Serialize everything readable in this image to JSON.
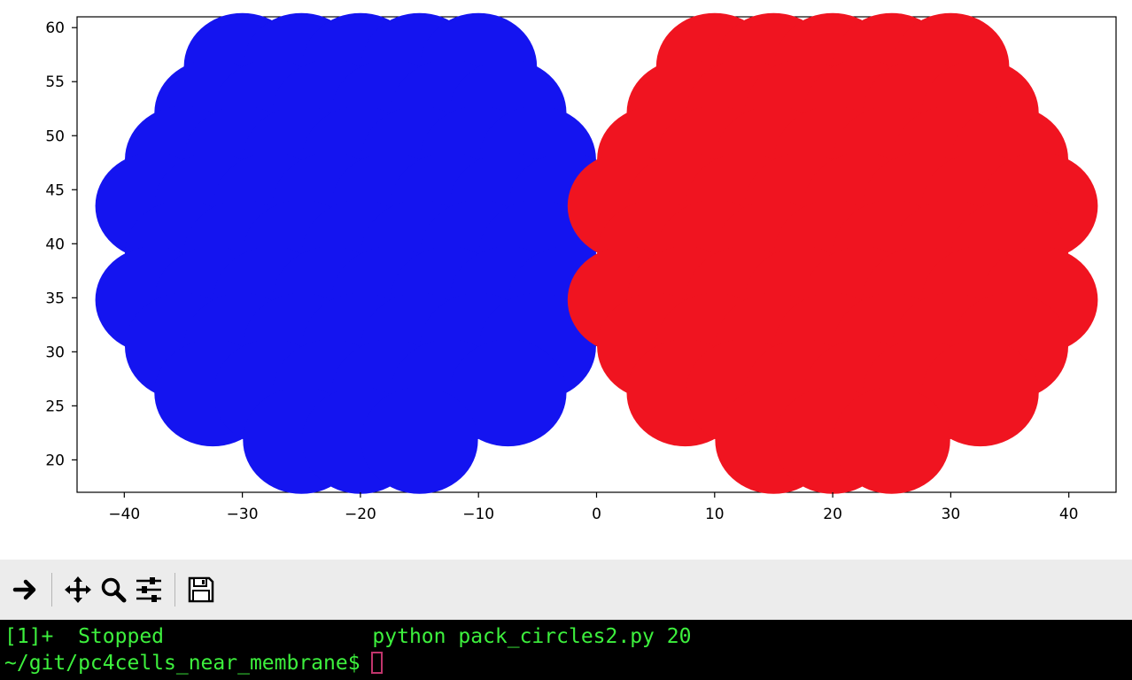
{
  "chart_data": {
    "type": "scatter",
    "title": "",
    "xlabel": "",
    "ylabel": "",
    "xlim": [
      -44,
      44
    ],
    "ylim": [
      17,
      61
    ],
    "xticks": [
      -40,
      -30,
      -20,
      -10,
      0,
      10,
      20,
      30,
      40
    ],
    "yticks": [
      20,
      25,
      30,
      35,
      40,
      45,
      50,
      55,
      60
    ],
    "marker_radius": 5,
    "series": [
      {
        "color": "#1414f0",
        "rows": [
          {
            "y": 56.4,
            "x": [
              -30,
              -25,
              -20,
              -15,
              -10
            ]
          },
          {
            "y": 52.1,
            "x": [
              -32.5,
              -27.5,
              -22.5,
              -17.5,
              -12.5,
              -7.5
            ]
          },
          {
            "y": 47.8,
            "x": [
              -35,
              -30,
              -25,
              -20,
              -15,
              -10,
              -5
            ]
          },
          {
            "y": 43.5,
            "x": [
              -37.5,
              -32.5,
              -27.5,
              -22.5,
              -17.5,
              -12.5,
              -7.5,
              -2.5
            ]
          },
          {
            "y": 39.1,
            "x": [
              -35,
              -30,
              -25,
              -20,
              -15,
              -10,
              -5
            ]
          },
          {
            "y": 34.8,
            "x": [
              -37.5,
              -32.5,
              -27.5,
              -22.5,
              -17.5,
              -12.5,
              -7.5,
              -2.5
            ]
          },
          {
            "y": 30.5,
            "x": [
              -35,
              -30,
              -25,
              -20,
              -15,
              -10,
              -5
            ]
          },
          {
            "y": 26.2,
            "x": [
              -32.5,
              -27.5,
              -22.5,
              -17.5,
              -12.5,
              -7.5
            ]
          },
          {
            "y": 21.8,
            "x": [
              -25,
              -20,
              -15
            ]
          }
        ]
      },
      {
        "color": "#f01420",
        "rows": [
          {
            "y": 56.4,
            "x": [
              10,
              15,
              20,
              25,
              30
            ]
          },
          {
            "y": 52.1,
            "x": [
              7.5,
              12.5,
              17.5,
              22.5,
              27.5,
              32.5
            ]
          },
          {
            "y": 47.8,
            "x": [
              5,
              10,
              15,
              20,
              25,
              30,
              35
            ]
          },
          {
            "y": 43.5,
            "x": [
              2.5,
              7.5,
              12.5,
              17.5,
              22.5,
              27.5,
              32.5,
              37.5
            ]
          },
          {
            "y": 39.1,
            "x": [
              5,
              10,
              15,
              20,
              25,
              30,
              35
            ]
          },
          {
            "y": 34.8,
            "x": [
              2.5,
              7.5,
              12.5,
              17.5,
              22.5,
              27.5,
              32.5,
              37.5
            ]
          },
          {
            "y": 30.5,
            "x": [
              5,
              10,
              15,
              20,
              25,
              30,
              35
            ]
          },
          {
            "y": 26.2,
            "x": [
              7.5,
              12.5,
              17.5,
              22.5,
              27.5,
              32.5
            ]
          },
          {
            "y": 21.8,
            "x": [
              15,
              20,
              25
            ]
          }
        ]
      }
    ]
  },
  "toolbar": {
    "buttons": [
      {
        "icon": "forward-arrow-icon"
      },
      {
        "icon": "pan-arrows-icon"
      },
      {
        "icon": "zoom-magnifier-icon"
      },
      {
        "icon": "subplots-sliders-icon"
      },
      {
        "icon": "save-floppy-icon"
      }
    ]
  },
  "terminal": {
    "job_line": "[1]+  Stopped                 python pack_circles2.py 20",
    "prompt": "~/git/pc4cells_near_membrane$"
  }
}
